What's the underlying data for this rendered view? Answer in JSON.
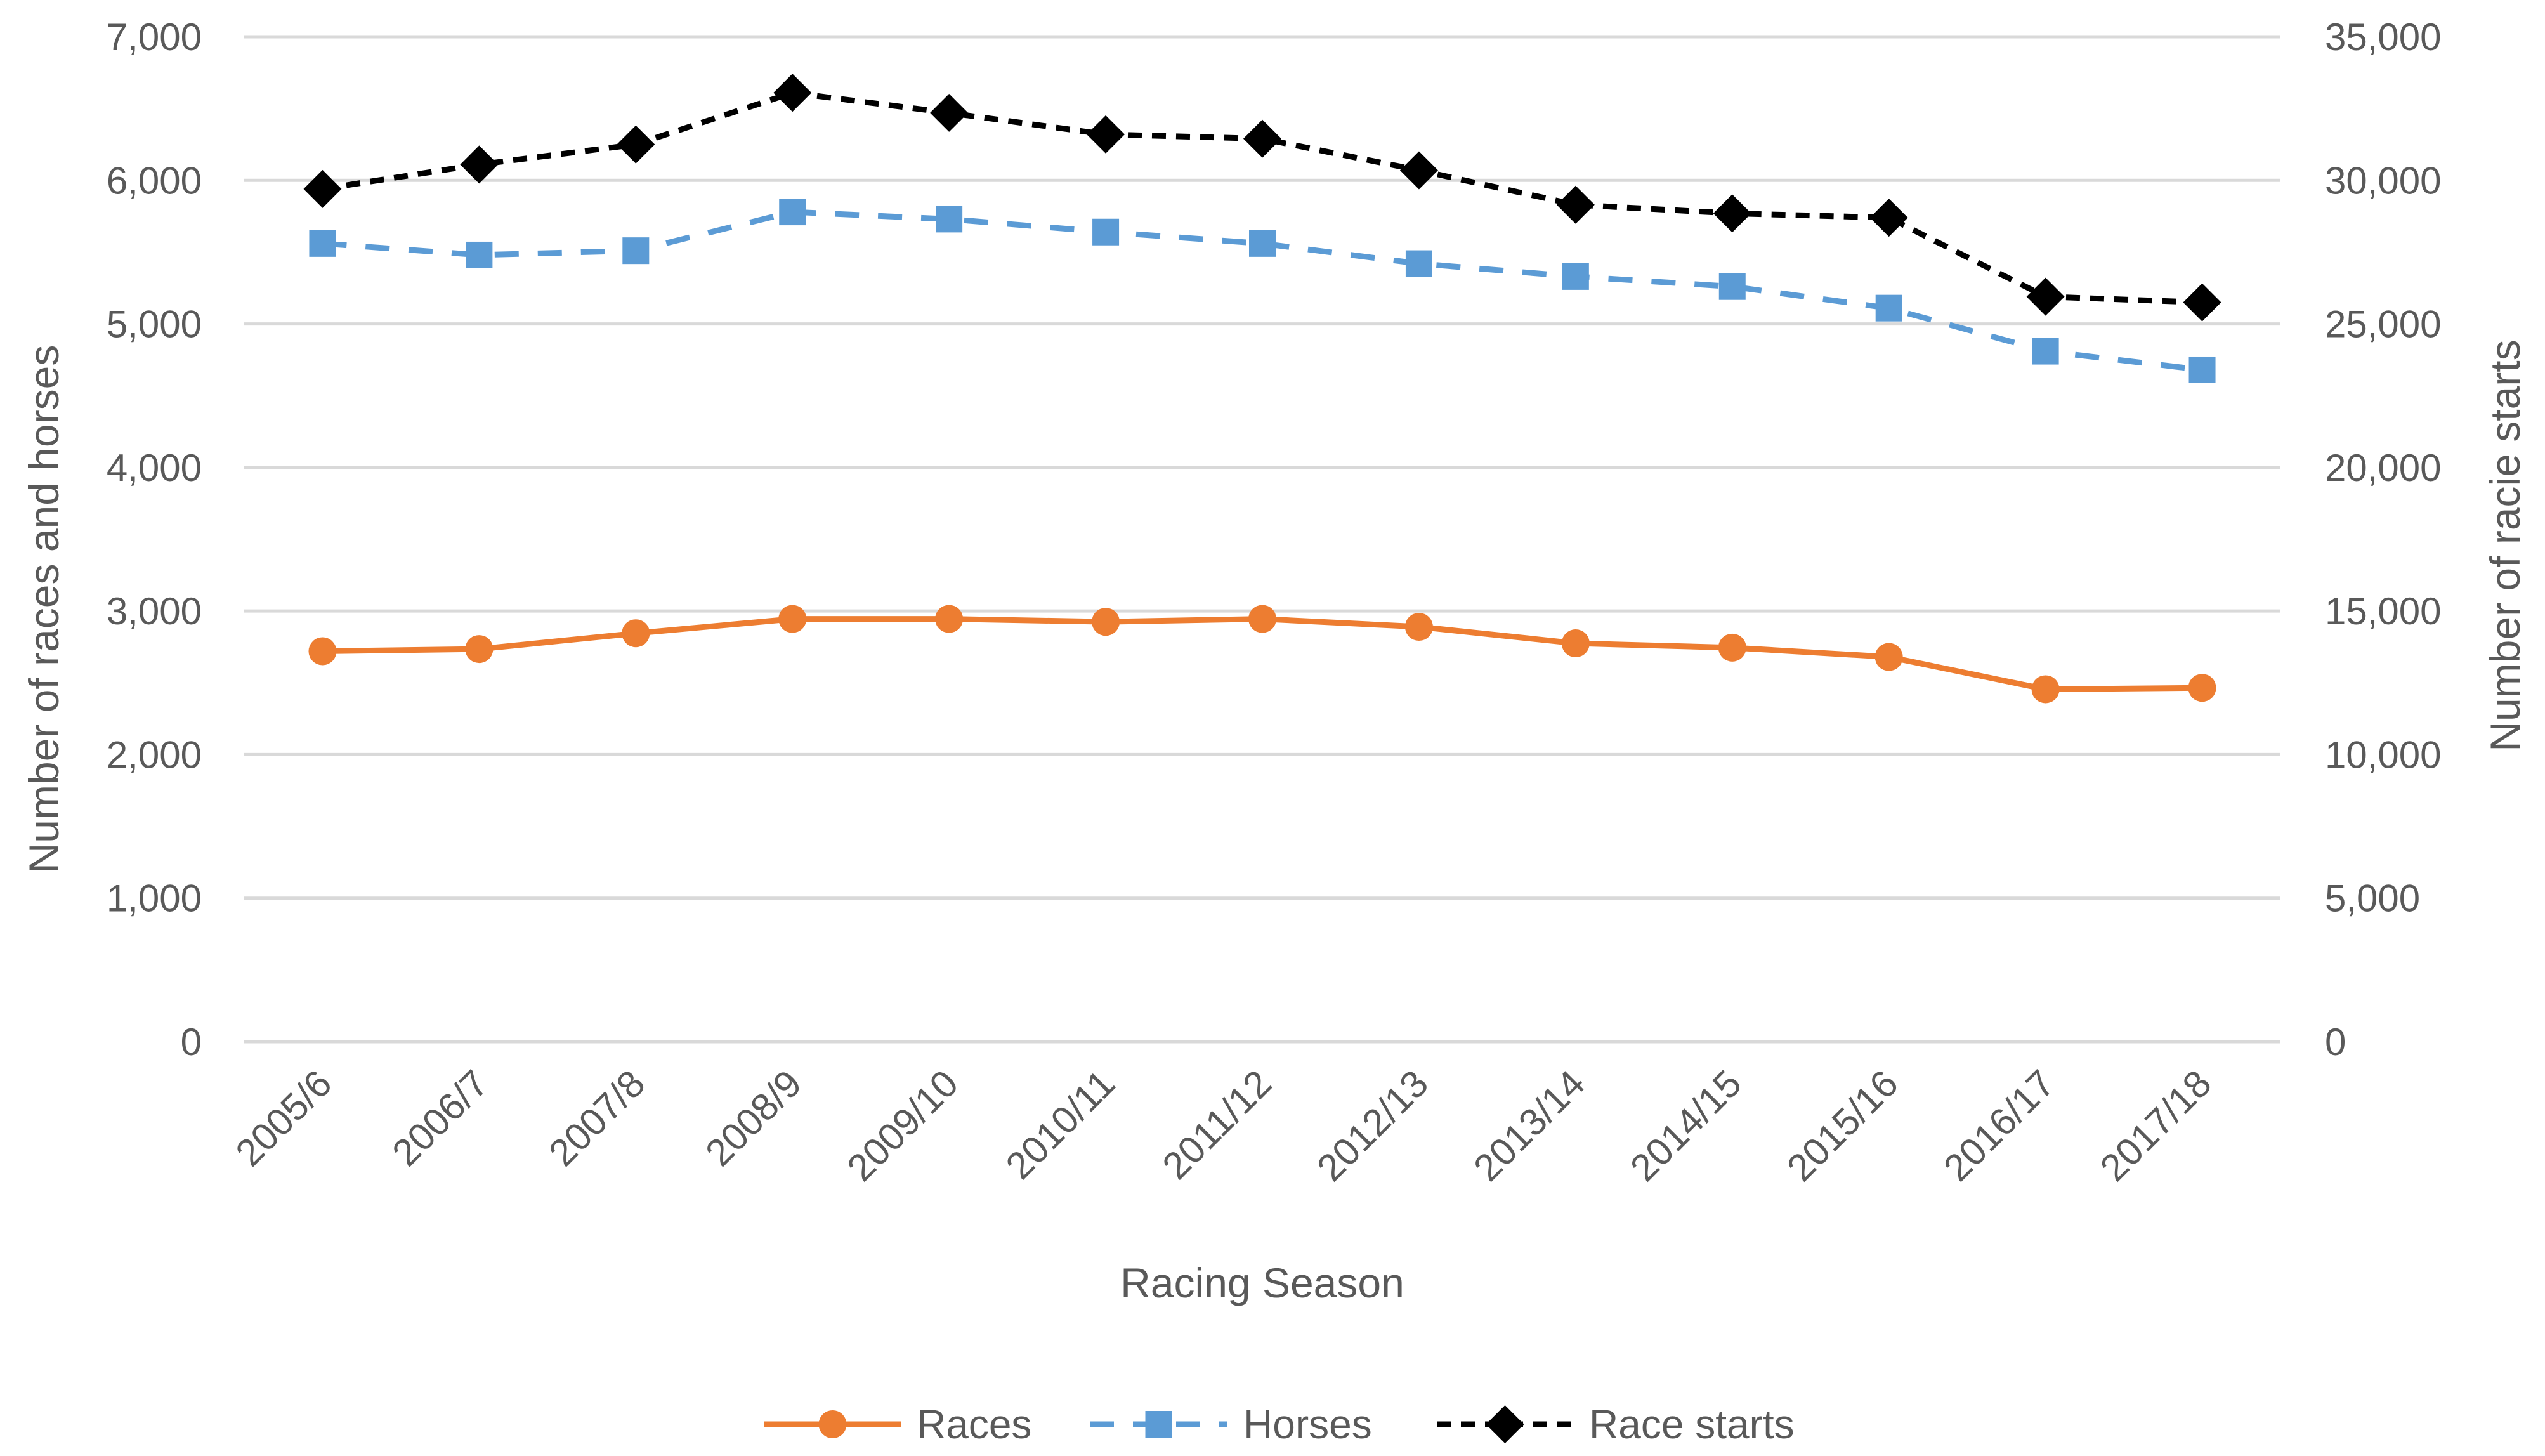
{
  "chart_data": {
    "type": "line",
    "title": "",
    "xlabel": "Racing Season",
    "ylabel": "Number of races and horses",
    "y2label": "Number of racie starts",
    "categories": [
      "2005/6",
      "2006/7",
      "2007/8",
      "2008/9",
      "2009/10",
      "2010/11",
      "2011/12",
      "2012/13",
      "2013/14",
      "2014/15",
      "2015/16",
      "2016/17",
      "2017/18"
    ],
    "ylim": [
      0,
      7000
    ],
    "y2lim": [
      0,
      35000
    ],
    "yticks": [
      "0",
      "1,000",
      "2,000",
      "3,000",
      "4,000",
      "5,000",
      "6,000",
      "7,000"
    ],
    "y2ticks": [
      "0",
      "5,000",
      "10,000",
      "15,000",
      "20,000",
      "25,000",
      "30,000",
      "35,000"
    ],
    "grid": true,
    "legend_position": "bottom",
    "series": [
      {
        "name": "Races",
        "axis": "left",
        "color": "#ED7D31",
        "dash": "solid",
        "marker": "circle",
        "values": [
          2720,
          2735,
          2845,
          2945,
          2945,
          2925,
          2945,
          2890,
          2775,
          2745,
          2680,
          2455,
          2465
        ]
      },
      {
        "name": "Horses",
        "axis": "left",
        "color": "#5B9BD5",
        "dash": "dashed",
        "marker": "square",
        "values": [
          5560,
          5480,
          5510,
          5780,
          5730,
          5640,
          5560,
          5420,
          5330,
          5260,
          5110,
          4810,
          4680
        ]
      },
      {
        "name": "Race starts",
        "axis": "right",
        "color": "#000000",
        "dash": "dotted",
        "marker": "diamond",
        "values": [
          29700,
          30550,
          31250,
          33050,
          32350,
          31600,
          31450,
          30350,
          29150,
          28850,
          28700,
          25950,
          25750
        ]
      }
    ]
  }
}
